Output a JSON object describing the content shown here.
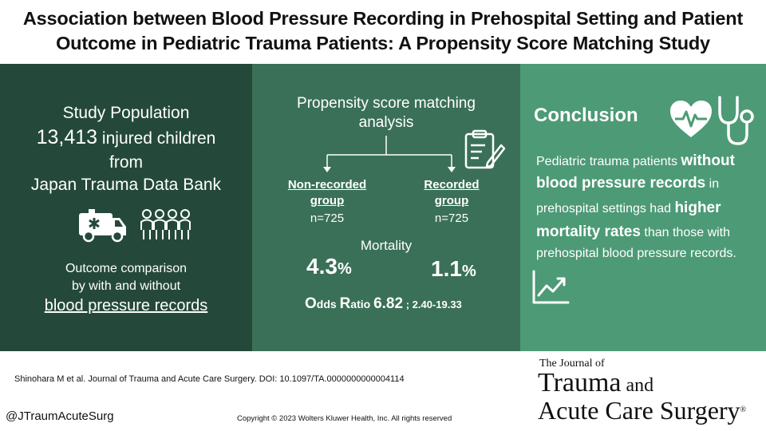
{
  "title": {
    "line1": "Association between Blood Pressure Recording in Prehospital Setting and Patient",
    "line2": "Outcome in Pediatric Trauma Patients: A Propensity Score Matching Study"
  },
  "population": {
    "heading": "Study Population",
    "count": "13,413",
    "count_suffix": " injured children",
    "from": "from",
    "source": "Japan Trauma Data Bank",
    "outcome_line1": "Outcome comparison",
    "outcome_line2": "by with and without",
    "outcome_line3": "blood pressure records"
  },
  "analysis": {
    "heading_line1": "Propensity score matching",
    "heading_line2": "analysis",
    "group1": {
      "name_line1": "Non-recorded",
      "name_line2": "group",
      "n": "n=725",
      "mortality_value": "4.3",
      "mortality_unit": "%"
    },
    "group2": {
      "name_line1": "Recorded",
      "name_line2": "group",
      "n": "n=725",
      "mortality_value": "1.1",
      "mortality_unit": "%"
    },
    "mortality_label": "Mortality",
    "or_O": "O",
    "or_dds": "dds ",
    "or_R": "R",
    "or_atio": "atio ",
    "or_value": "6.82",
    "or_ci": "; 2.40-19.33"
  },
  "conclusion": {
    "heading": "Conclusion",
    "t1": "Pediatric trauma patients ",
    "b1": "without",
    "b2": "blood pressure records",
    "t2": " in",
    "t3": "prehospital settings had ",
    "b3": "higher",
    "b4": "mortality rates",
    "t4": " than those with",
    "t5": "prehospital blood pressure records."
  },
  "footer": {
    "citation": "Shinohara M et al. Journal of Trauma and Acute Care Surgery. DOI: 10.1097/TA.0000000000004114",
    "handle": "@JTraumAcuteSurg",
    "copyright": "Copyright © 2023  Wolters Kluwer Health, Inc. All rights reserved",
    "journal_the": "The Journal of",
    "journal_line1a": "Trauma",
    "journal_line1b": " and",
    "journal_line2": "Acute Care Surgery",
    "journal_reg": "®"
  },
  "colors": {
    "panel1": "#24493b",
    "panel2": "#3a7058",
    "panel3": "#4d9a76"
  },
  "icons": [
    "ambulance-icon",
    "children-group-icon",
    "clipboard-icon",
    "heart-pulse-icon",
    "stethoscope-icon",
    "trend-up-icon"
  ]
}
